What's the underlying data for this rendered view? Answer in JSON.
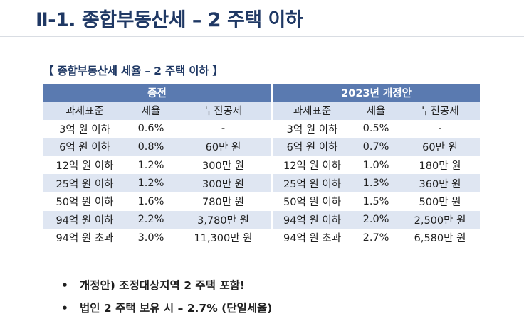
{
  "title": "Ⅱ-1. 종합부동산세 – 2 주택 이하",
  "section_heading": "【 종합부동산세 세율 – 2 주택 이하 】",
  "table": {
    "groups": [
      "종전",
      "2023년 개정안"
    ],
    "columns": [
      "과세표준",
      "세율",
      "누진공제",
      "과세표준",
      "세율",
      "누진공제"
    ],
    "rows": [
      [
        "3억 원 이하",
        "0.6%",
        "-",
        "3억 원 이하",
        "0.5%",
        "-"
      ],
      [
        "6억 원 이하",
        "0.8%",
        "60만 원",
        "6억 원 이하",
        "0.7%",
        "60만 원"
      ],
      [
        "12억 원 이하",
        "1.2%",
        "300만 원",
        "12억 원 이하",
        "1.0%",
        "180만 원"
      ],
      [
        "25억 원 이하",
        "1.2%",
        "300만 원",
        "25억 원 이하",
        "1.3%",
        "360만 원"
      ],
      [
        "50억 원 이하",
        "1.6%",
        "780만 원",
        "50억 원 이하",
        "1.5%",
        "500만 원"
      ],
      [
        "94억 원 이하",
        "2.2%",
        "3,780만 원",
        "94억 원 이하",
        "2.0%",
        "2,500만 원"
      ],
      [
        "94억 원 초과",
        "3.0%",
        "11,300만 원",
        "94억 원 초과",
        "2.7%",
        "6,580만 원"
      ]
    ]
  },
  "bullets": [
    "개정안) 조정대상지역 2 주택 포함!",
    "법인 2 주택 보유 시 – 2.7% (단일세율)"
  ],
  "bullet_symbol": "•",
  "colors": {
    "title": "#1f3864",
    "group_header_bg": "#5a7ab0",
    "column_header_bg": "#d9e2f1",
    "band_row_bg": "#dfe6f2"
  }
}
